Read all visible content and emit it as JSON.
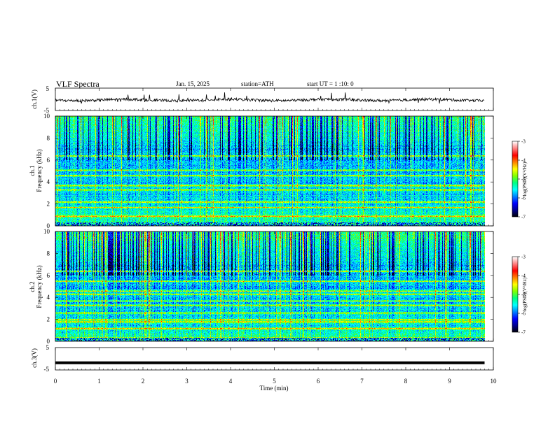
{
  "header": {
    "title": "VLF Spectra",
    "date": "Jan. 15, 2025",
    "station": "station=ATH",
    "start": "start UT = 1 :10: 0"
  },
  "chart_data": [
    {
      "type": "line",
      "panel": "ch1-waveform",
      "ylabel": "ch.1(V)",
      "ylim": [
        -5,
        5
      ],
      "ytick_labels": [
        "5",
        "-5"
      ],
      "xlim": [
        0,
        10
      ],
      "series": [
        {
          "values_note": "",
          "mean": -0.3
        }
      ],
      "data_extent_min": 9.8
    },
    {
      "type": "heatmap",
      "panel": "ch1-spectrogram",
      "ylabel_line1": "ch.1",
      "ylabel_line2": "Frequency (kHz)",
      "ylim": [
        0,
        10
      ],
      "ytick_labels": [
        "0",
        "2",
        "4",
        "6",
        "8",
        "10"
      ],
      "xlim": [
        0,
        10
      ],
      "data_extent_min": 9.8,
      "band_centers_khz": [
        0.2,
        0.9,
        1.7,
        2.2,
        3.3,
        3.7,
        4.6,
        5.1,
        6.4
      ],
      "colorbar": {
        "label": "log(PSD)(V²/Hz)",
        "range": [
          -7,
          -3
        ],
        "tick_labels": [
          "-3",
          "-4",
          "-5",
          "-6",
          "-7"
        ]
      }
    },
    {
      "type": "heatmap",
      "panel": "ch2-spectrogram",
      "ylabel_line1": "ch.2",
      "ylabel_line2": "Frequency (kHz)",
      "ylim": [
        0,
        10
      ],
      "ytick_labels": [
        "0",
        "2",
        "4",
        "6",
        "8",
        "10"
      ],
      "xlim": [
        0,
        10
      ],
      "data_extent_min": 9.8,
      "band_centers_khz": [
        0.3,
        1.2,
        1.8,
        2.0,
        2.6,
        3.3,
        3.7,
        4.3,
        4.6,
        5.5,
        6.4
      ],
      "colorbar": {
        "label": "log(PSD)(V²/Hz)",
        "range": [
          -7,
          -3
        ],
        "tick_labels": [
          "-3",
          "-4",
          "-5",
          "-6",
          "-7"
        ]
      }
    },
    {
      "type": "line",
      "panel": "ch3-waveform",
      "ylabel": "ch.3(V)",
      "ylim": [
        -5,
        5
      ],
      "ytick_labels": [
        "5",
        "-5"
      ],
      "xlim": [
        0,
        10
      ],
      "series": [
        {
          "mean": -1.8
        }
      ],
      "data_extent_min": 9.8
    }
  ],
  "xaxis": {
    "label": "Time (min)",
    "tick_labels": [
      "0",
      "1",
      "2",
      "3",
      "4",
      "5",
      "6",
      "7",
      "8",
      "9",
      "10"
    ]
  },
  "colormap": [
    "#000000",
    "#00008b",
    "#0000ff",
    "#0080ff",
    "#00ffff",
    "#00ff80",
    "#80ff00",
    "#ffff00",
    "#ff8000",
    "#ff0000",
    "#ff8080",
    "#ffffff"
  ]
}
